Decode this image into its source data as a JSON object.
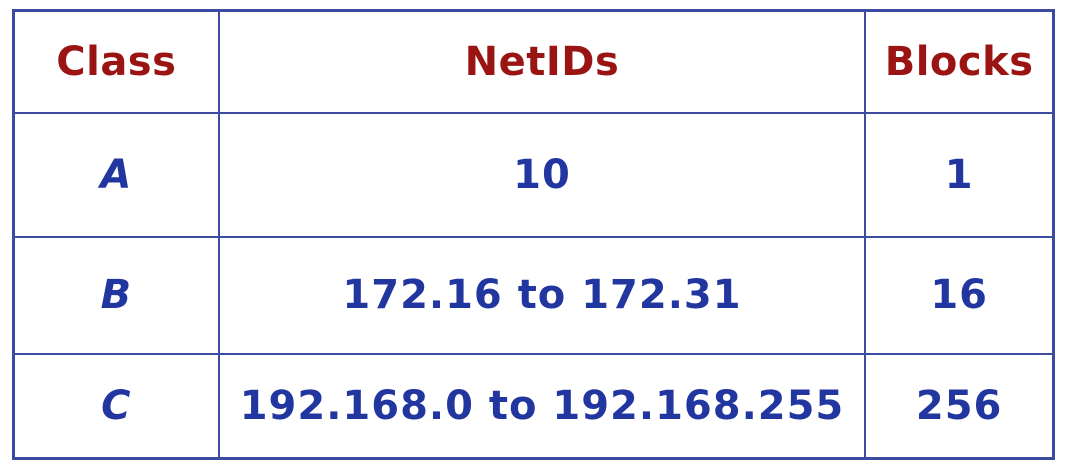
{
  "colors": {
    "header_text": "#9b1414",
    "body_text": "#2236a0",
    "border": "#3c4aa0"
  },
  "table": {
    "headers": [
      "Class",
      "NetIDs",
      "Blocks"
    ],
    "rows": [
      {
        "class": "A",
        "netids": "10",
        "blocks": "1"
      },
      {
        "class": "B",
        "netids": "172.16 to 172.31",
        "blocks": "16"
      },
      {
        "class": "C",
        "netids": "192.168.0 to 192.168.255",
        "blocks": "256"
      }
    ]
  }
}
